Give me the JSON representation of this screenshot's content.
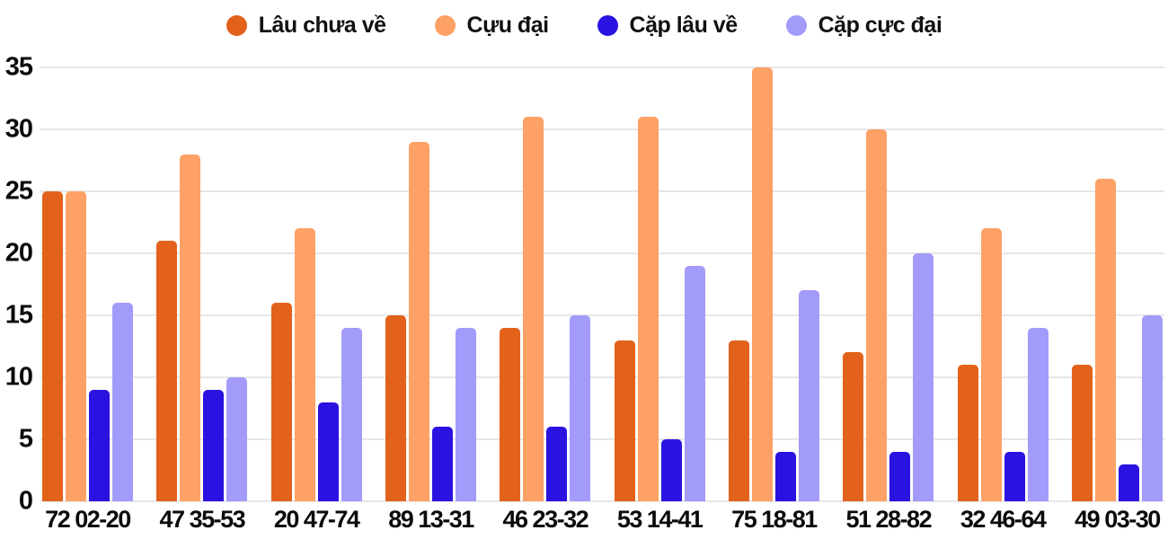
{
  "chart_data": {
    "type": "bar",
    "title": "",
    "xlabel": "",
    "ylabel": "",
    "categories": [
      "72 02-20",
      "47 35-53",
      "20 47-74",
      "89 13-31",
      "46 23-32",
      "53 14-41",
      "75 18-81",
      "51 28-82",
      "32 46-64",
      "49 03-30"
    ],
    "series": [
      {
        "name": "Lâu chưa về",
        "color": "#e2621b",
        "values": [
          25,
          21,
          16,
          15,
          14,
          13,
          13,
          12,
          11,
          11
        ]
      },
      {
        "name": "Cựu đại",
        "color": "#fda166",
        "values": [
          25,
          28,
          22,
          29,
          31,
          31,
          35,
          30,
          22,
          26
        ]
      },
      {
        "name": "Cặp lâu về",
        "color": "#2a12e0",
        "values": [
          9,
          9,
          8,
          6,
          6,
          5,
          4,
          4,
          4,
          3
        ]
      },
      {
        "name": "Cặp cực đại",
        "color": "#a39bf9",
        "values": [
          16,
          10,
          14,
          14,
          15,
          19,
          17,
          20,
          14,
          15
        ]
      }
    ],
    "ylim": [
      0,
      35
    ],
    "yticks": [
      0,
      5,
      10,
      15,
      20,
      25,
      30,
      35
    ],
    "grid": true,
    "legend_position": "top"
  },
  "colors": {
    "grid": "#e7e7e7",
    "text": "#0b0b0b",
    "background": "#ffffff"
  }
}
